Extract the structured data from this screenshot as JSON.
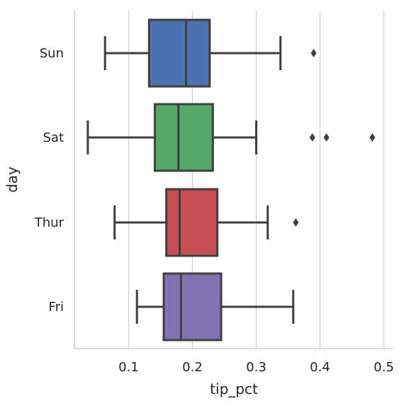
{
  "chart_data": {
    "type": "boxplot",
    "orientation": "horizontal",
    "title": "",
    "xlabel": "tip_pct",
    "ylabel": "day",
    "xlim": [
      0.015,
      0.515
    ],
    "xticks": [
      0.1,
      0.2,
      0.3,
      0.4,
      0.5
    ],
    "xtick_labels": [
      "0.1",
      "0.2",
      "0.3",
      "0.4",
      "0.5"
    ],
    "grid": "vertical",
    "categories": [
      "Sun",
      "Sat",
      "Thur",
      "Fri"
    ],
    "boxes": [
      {
        "category": "Sun",
        "color": "#4c72b0",
        "whisker_low": 0.063,
        "q1": 0.132,
        "median": 0.19,
        "q3": 0.227,
        "whisker_high": 0.338,
        "outliers": [
          0.39
        ]
      },
      {
        "category": "Sat",
        "color": "#55a868",
        "whisker_low": 0.036,
        "q1": 0.141,
        "median": 0.178,
        "q3": 0.232,
        "whisker_high": 0.3,
        "outliers": [
          0.388,
          0.41,
          0.482
        ]
      },
      {
        "category": "Thur",
        "color": "#c44e52",
        "whisker_low": 0.078,
        "q1": 0.159,
        "median": 0.18,
        "q3": 0.239,
        "whisker_high": 0.318,
        "outliers": [
          0.362
        ]
      },
      {
        "category": "Fri",
        "color": "#8172b2",
        "whisker_low": 0.113,
        "q1": 0.155,
        "median": 0.182,
        "q3": 0.245,
        "whisker_high": 0.358,
        "outliers": []
      }
    ]
  }
}
